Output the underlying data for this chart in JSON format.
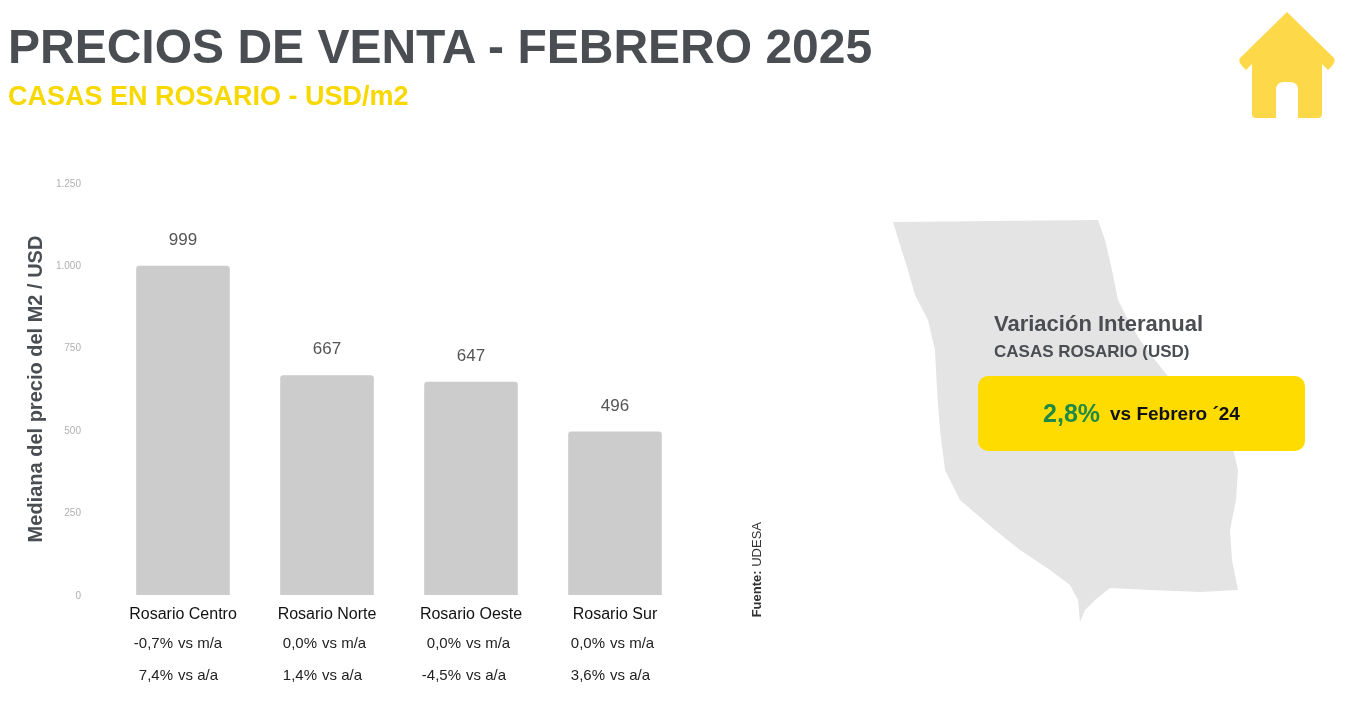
{
  "chart_data": [
    {
      "type": "bar",
      "title": "PRECIOS DE VENTA - FEBRERO 2025",
      "subtitle": "CASAS EN ROSARIO - USD/m2",
      "ylabel": "Mediana del precio del M2 / USD",
      "categories": [
        "Rosario Centro",
        "Rosario Norte",
        "Rosario Oeste",
        "Rosario Sur"
      ],
      "values": [
        999,
        667,
        647,
        496
      ],
      "color": "#cccccc",
      "ylim": [
        0,
        1250
      ],
      "yticks": [
        0,
        250,
        500,
        750,
        {
          "value": 1000,
          "label": "1.000"
        },
        {
          "value": 1250,
          "label": "1.250"
        }
      ],
      "data_labels": true,
      "annotations": [
        "-0,7% vs m/a",
        "0,0% vs m/a",
        "0,0% vs m/a",
        "0,0% vs m/a",
        "7,4% vs a/a",
        "1,4% vs a/a",
        "-4,5% vs a/a",
        "3,6% vs a/a",
        "Fuente: UDESA"
      ]
    },
    {
      "type": "other",
      "title": "Variación Interanual",
      "subtitle": "CASAS ROSARIO (USD)",
      "annotations": [
        "2,8%",
        "vs Febrero ´24"
      ]
    }
  ]
}
